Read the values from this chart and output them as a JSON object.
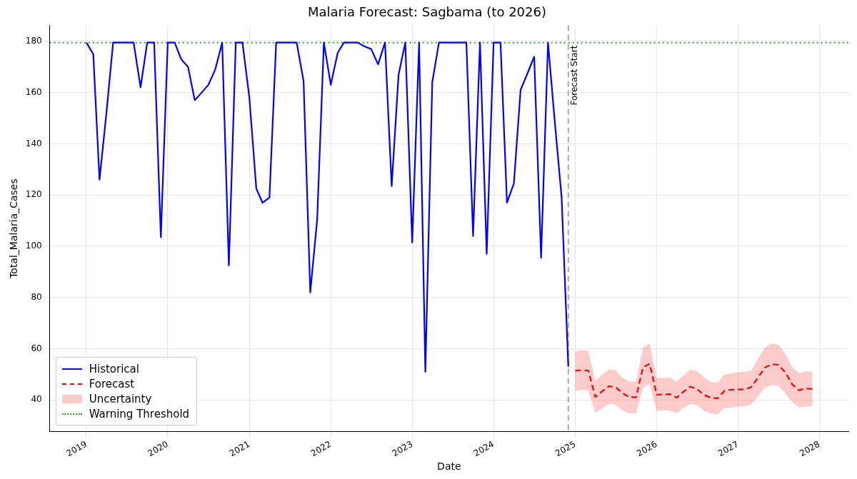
{
  "chart_data": {
    "type": "line",
    "title": "Malaria Forecast: Sagbama (to 2026)",
    "xlabel": "Date",
    "ylabel": "Total_Malaria_Cases",
    "xlim": [
      "2018-07-21",
      "2028-05-10"
    ],
    "xticks": [
      "2019",
      "2020",
      "2021",
      "2022",
      "2023",
      "2024",
      "2025",
      "2026",
      "2027",
      "2028"
    ],
    "ylim": [
      27.7,
      186.2
    ],
    "yticks": [
      40,
      60,
      80,
      100,
      120,
      140,
      160,
      180
    ],
    "grid": true,
    "legend": "bottom left",
    "series": [
      {
        "name": "Historical",
        "color": "#0000ff",
        "line_style": "solid",
        "x": [
          "2019-01",
          "2019-02",
          "2019-03",
          "2019-04",
          "2019-05",
          "2019-06",
          "2019-07",
          "2019-08",
          "2019-09",
          "2019-10",
          "2019-11",
          "2019-12",
          "2020-01",
          "2020-02",
          "2020-03",
          "2020-04",
          "2020-05",
          "2020-06",
          "2020-07",
          "2020-08",
          "2020-09",
          "2020-10",
          "2020-11",
          "2020-12",
          "2021-01",
          "2021-02",
          "2021-03",
          "2021-04",
          "2021-05",
          "2021-06",
          "2021-07",
          "2021-08",
          "2021-09",
          "2021-10",
          "2021-11",
          "2021-12",
          "2022-01",
          "2022-02",
          "2022-03",
          "2022-04",
          "2022-05",
          "2022-06",
          "2022-07",
          "2022-08",
          "2022-09",
          "2022-10",
          "2022-11",
          "2022-12",
          "2023-01",
          "2023-02",
          "2023-03",
          "2023-04",
          "2023-05",
          "2023-06",
          "2023-07",
          "2023-08",
          "2023-09",
          "2023-10",
          "2023-11",
          "2023-12",
          "2024-01",
          "2024-02",
          "2024-03",
          "2024-04",
          "2024-05",
          "2024-06",
          "2024-07",
          "2024-08",
          "2024-09",
          "2024-10",
          "2024-11",
          "2024-12"
        ],
        "values": [
          179.5,
          175,
          126,
          152,
          179.5,
          179.5,
          179.5,
          179.5,
          162,
          179.5,
          179.5,
          103.5,
          179.5,
          179.5,
          173,
          170,
          157,
          160,
          163,
          169,
          179.5,
          92.5,
          179.5,
          179.5,
          158,
          122.5,
          117,
          119,
          179.5,
          179.5,
          179.5,
          179.5,
          164.5,
          82,
          110.5,
          179.5,
          163,
          175.5,
          179.5,
          179.5,
          179.5,
          178,
          177,
          171,
          179.5,
          123.5,
          167,
          179.5,
          101.5,
          179.5,
          51,
          164,
          179.5,
          179.5,
          179.5,
          179.5,
          179.5,
          104,
          179.5,
          97,
          179.5,
          179.5,
          117,
          124.5,
          161,
          167.5,
          174,
          95.5,
          179.5,
          149,
          119,
          53
        ]
      },
      {
        "name": "Forecast",
        "color": "#ff0000",
        "line_style": "dashed",
        "x": [
          "2025-01",
          "2025-02",
          "2025-03",
          "2025-04",
          "2025-05",
          "2025-06",
          "2025-07",
          "2025-08",
          "2025-09",
          "2025-10",
          "2025-11",
          "2025-12",
          "2026-01",
          "2026-02",
          "2026-03",
          "2026-04",
          "2026-05",
          "2026-06",
          "2026-07",
          "2026-08",
          "2026-09",
          "2026-10",
          "2026-11",
          "2026-12",
          "2027-01",
          "2027-02",
          "2027-03",
          "2027-04",
          "2027-05",
          "2027-06",
          "2027-07",
          "2027-08",
          "2027-09",
          "2027-10",
          "2027-11",
          "2027-12"
        ],
        "values": [
          51.4,
          51.7,
          51.4,
          41.2,
          43.3,
          45.4,
          45.0,
          42.7,
          41.1,
          41.1,
          52.8,
          54.1,
          42.1,
          42.2,
          42.3,
          40.9,
          43.2,
          45.2,
          44.3,
          42.0,
          40.9,
          40.6,
          43.6,
          44.0,
          44.1,
          44.2,
          45.0,
          48.8,
          52.6,
          54.0,
          53.7,
          50.8,
          46.1,
          43.8,
          44.5,
          44.3
        ],
        "lower": [
          43.6,
          44.0,
          43.8,
          35.0,
          36.7,
          38.4,
          38.2,
          35.9,
          34.8,
          34.8,
          44.7,
          46.3,
          35.7,
          35.9,
          35.9,
          34.8,
          36.8,
          38.4,
          37.9,
          35.8,
          34.7,
          34.4,
          36.8,
          37.1,
          37.5,
          37.6,
          38.2,
          41.5,
          44.7,
          45.9,
          45.6,
          42.5,
          39.1,
          37.1,
          37.6,
          37.6
        ],
        "upper": [
          58.9,
          59.6,
          59.2,
          47.4,
          49.9,
          52.0,
          51.6,
          48.7,
          47.2,
          47.2,
          60.5,
          62.1,
          48.5,
          48.6,
          48.8,
          47.2,
          49.5,
          51.9,
          51.4,
          48.8,
          47.0,
          46.8,
          50.0,
          50.4,
          50.8,
          51.0,
          51.5,
          56.2,
          60.3,
          62.1,
          61.6,
          58.0,
          52.9,
          50.4,
          51.2,
          51.1
        ]
      }
    ],
    "annotations": [
      "Uncertainty"
    ],
    "ref_lines": [
      {
        "axis": "y",
        "value": 179.5,
        "label": "Warning Threshold",
        "color": "#2ca02c",
        "line_style": "dotted"
      },
      {
        "axis": "x",
        "value": "2024-12-01",
        "label": "Forecast Start",
        "color": "#aaaaaa",
        "line_style": "dashed"
      }
    ]
  }
}
